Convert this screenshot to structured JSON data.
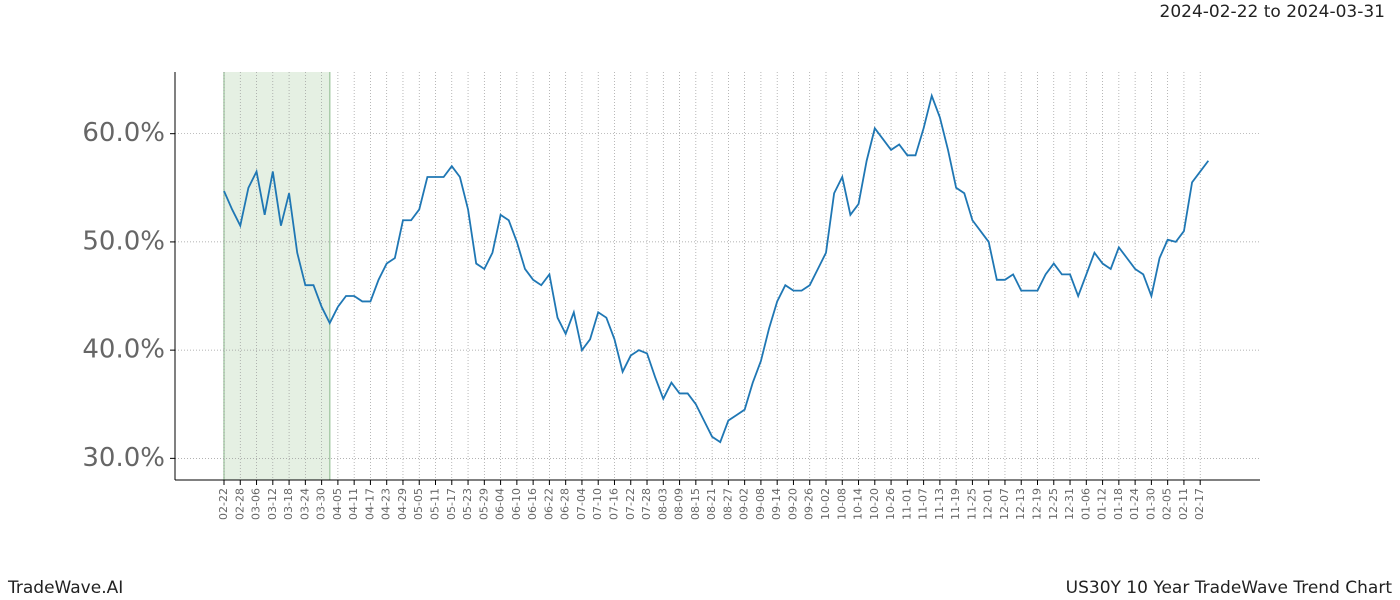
{
  "chart_data": {
    "type": "line",
    "title": "2024-02-22 to 2024-03-31",
    "footer_left": "TradeWave.AI",
    "footer_right": "US30Y 10 Year TradeWave Trend Chart",
    "categories": [
      "02-22",
      null,
      "02-28",
      null,
      "03-06",
      null,
      "03-12",
      null,
      "03-18",
      null,
      "03-24",
      null,
      "03-30",
      null,
      "04-05",
      null,
      "04-11",
      null,
      "04-17",
      null,
      "04-23",
      null,
      "04-29",
      null,
      "05-05",
      null,
      "05-11",
      null,
      "05-17",
      null,
      "05-23",
      null,
      "05-29",
      null,
      "06-04",
      null,
      "06-10",
      null,
      "06-16",
      null,
      "06-22",
      null,
      "06-28",
      null,
      "07-04",
      null,
      "07-10",
      null,
      "07-16",
      null,
      "07-22",
      null,
      "07-28",
      null,
      "08-03",
      null,
      "08-09",
      null,
      "08-15",
      null,
      "08-21",
      null,
      "08-27",
      null,
      "09-02",
      null,
      "09-08",
      null,
      "09-14",
      null,
      "09-20",
      null,
      "09-26",
      null,
      "10-02",
      null,
      "10-08",
      null,
      "10-14",
      null,
      "10-20",
      null,
      "10-26",
      null,
      "11-01",
      null,
      "11-07",
      null,
      "11-13",
      null,
      "11-19",
      null,
      "11-25",
      null,
      "12-01",
      null,
      "12-07",
      null,
      "12-13",
      null,
      "12-19",
      null,
      "12-25",
      null,
      "12-31",
      null,
      "01-06",
      null,
      "01-12",
      null,
      "01-18",
      null,
      "01-24",
      null,
      "01-30",
      null,
      "02-05",
      null,
      "02-11",
      null,
      "02-17",
      null
    ],
    "values": [
      54.7,
      53,
      51.5,
      55,
      56.5,
      52.5,
      56.5,
      51.5,
      54.5,
      49,
      46,
      46,
      44,
      42.5,
      44,
      45,
      45,
      44.5,
      44.5,
      46.5,
      48,
      48.5,
      52,
      52,
      53,
      56,
      56,
      56,
      57,
      56,
      53,
      48,
      47.5,
      49,
      52.5,
      52,
      50,
      47.5,
      46.5,
      46,
      47,
      43,
      41.5,
      43.5,
      40,
      41,
      43.5,
      43,
      41,
      38,
      39.5,
      40,
      39.7,
      37.5,
      35.5,
      37,
      36,
      36,
      35,
      33.5,
      32,
      31.5,
      33.5,
      34,
      34.5,
      37,
      39,
      42,
      44.5,
      46,
      45.5,
      45.5,
      46,
      47.5,
      49,
      54.5,
      56,
      52.5,
      53.5,
      57.5,
      60.5,
      59.5,
      58.5,
      59,
      58,
      58,
      60.5,
      63.5,
      61.5,
      58.5,
      55,
      54.5,
      52,
      51,
      50,
      46.5,
      46.5,
      47,
      45.5,
      45.5,
      45.5,
      47,
      48,
      47,
      47,
      45,
      47,
      49,
      48,
      47.5,
      49.5,
      48.5,
      47.5,
      47,
      45,
      48.5,
      50.2,
      50,
      51,
      55.5,
      56.5,
      57.5
    ],
    "color": "#1f77b4",
    "highlight": {
      "from": 0,
      "to": 13,
      "color": "#e5f0e3"
    },
    "ylim": [
      28,
      65.7
    ],
    "yticks": [
      {
        "value": 30,
        "label": "30.0%"
      },
      {
        "value": 40,
        "label": "40.0%"
      },
      {
        "value": 50,
        "label": "50.0%"
      },
      {
        "value": 60,
        "label": "60.0%"
      }
    ],
    "grid": true
  }
}
